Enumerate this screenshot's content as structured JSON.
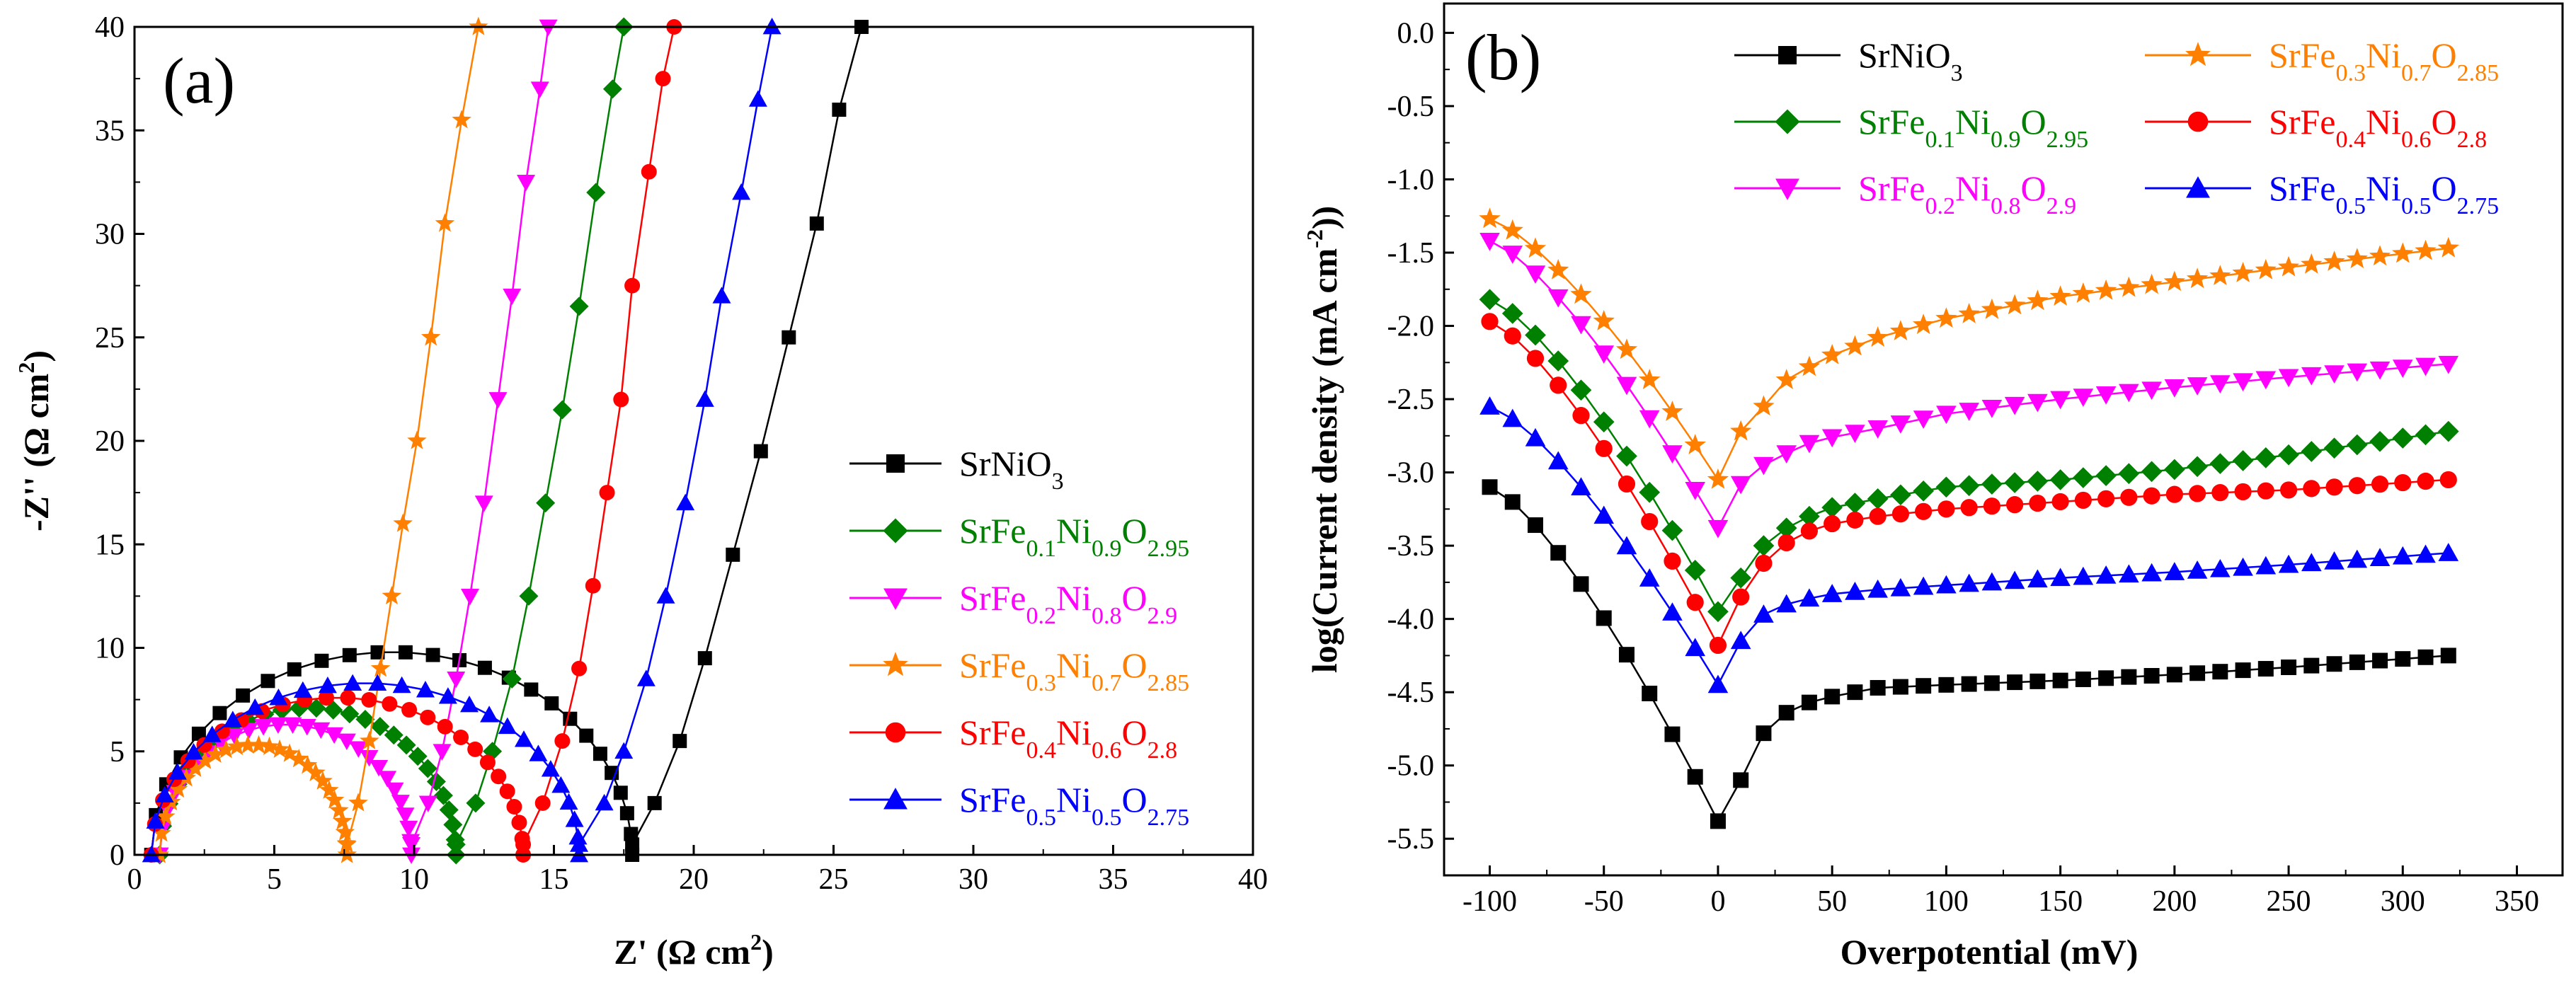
{
  "chart_data": [
    {
      "type": "scatter",
      "panel_label": "(a)",
      "xlabel": "Z' (Ω cm²)",
      "ylabel": "-Z'' (Ω cm²)",
      "xlim": [
        0,
        40
      ],
      "ylim": [
        0,
        40
      ],
      "xticks": [
        0,
        5,
        10,
        15,
        20,
        25,
        30,
        35,
        40
      ],
      "yticks": [
        0,
        5,
        10,
        15,
        20,
        25,
        30,
        35,
        40
      ],
      "legend_position": "center-right",
      "series": [
        {
          "name": "SrNiO3",
          "color": "#000000",
          "marker": "square",
          "arc": [
            0.6,
            17.8,
            9.8
          ],
          "tail": [
            [
              17.8,
              0.5
            ],
            [
              18.6,
              2.5
            ],
            [
              19.5,
              5.5
            ],
            [
              20.4,
              9.5
            ],
            [
              21.4,
              14.5
            ],
            [
              22.4,
              19.5
            ],
            [
              23.4,
              25
            ],
            [
              24.4,
              30.5
            ],
            [
              25.2,
              36
            ],
            [
              26.0,
              40
            ]
          ]
        },
        {
          "name": "SrFe0.1Ni0.9O2.95",
          "color": "#008000",
          "marker": "diamond",
          "arc": [
            0.9,
            11.5,
            7.1
          ],
          "tail": [
            [
              11.5,
              0.5
            ],
            [
              12.2,
              2.5
            ],
            [
              12.8,
              5
            ],
            [
              13.5,
              8.5
            ],
            [
              14.1,
              12.5
            ],
            [
              14.7,
              17
            ],
            [
              15.3,
              21.5
            ],
            [
              15.9,
              26.5
            ],
            [
              16.5,
              32
            ],
            [
              17.1,
              37
            ],
            [
              17.5,
              40
            ]
          ]
        },
        {
          "name": "SrFe0.2Ni0.8O2.9",
          "color": "#ff00ff",
          "marker": "triangle-down",
          "arc": [
            0.9,
            9.9,
            6.3
          ],
          "tail": [
            [
              9.9,
              0.5
            ],
            [
              10.5,
              2.5
            ],
            [
              11.0,
              5
            ],
            [
              11.5,
              8.5
            ],
            [
              12.0,
              12.5
            ],
            [
              12.5,
              17
            ],
            [
              13.0,
              22
            ],
            [
              13.5,
              27
            ],
            [
              14.0,
              32.5
            ],
            [
              14.5,
              37
            ],
            [
              14.8,
              40
            ]
          ]
        },
        {
          "name": "SrFe0.3Ni0.7O2.85",
          "color": "#ff8000",
          "marker": "star",
          "arc": [
            0.9,
            7.6,
            5.3
          ],
          "tail": [
            [
              7.6,
              0.5
            ],
            [
              8.0,
              2.5
            ],
            [
              8.4,
              5.5
            ],
            [
              8.8,
              9
            ],
            [
              9.2,
              12.5
            ],
            [
              9.6,
              16
            ],
            [
              10.1,
              20
            ],
            [
              10.6,
              25
            ],
            [
              11.1,
              30.5
            ],
            [
              11.7,
              35.5
            ],
            [
              12.3,
              40
            ]
          ]
        },
        {
          "name": "SrFe0.4Ni0.6O2.8",
          "color": "#ff0000",
          "marker": "circle",
          "arc": [
            0.6,
            13.9,
            7.6
          ],
          "tail": [
            [
              13.9,
              0.5
            ],
            [
              14.6,
              2.5
            ],
            [
              15.3,
              5.5
            ],
            [
              15.9,
              9
            ],
            [
              16.4,
              13
            ],
            [
              16.9,
              17.5
            ],
            [
              17.4,
              22
            ],
            [
              17.8,
              27.5
            ],
            [
              18.4,
              33
            ],
            [
              18.9,
              37.5
            ],
            [
              19.3,
              40
            ]
          ]
        },
        {
          "name": "SrFe0.5Ni0.5O2.75",
          "color": "#0000ff",
          "marker": "triangle-up",
          "arc": [
            0.6,
            15.9,
            8.3
          ],
          "tail": [
            [
              15.9,
              0.5
            ],
            [
              16.8,
              2.5
            ],
            [
              17.5,
              5
            ],
            [
              18.3,
              8.5
            ],
            [
              19.0,
              12.5
            ],
            [
              19.7,
              17
            ],
            [
              20.4,
              22
            ],
            [
              21.0,
              27
            ],
            [
              21.7,
              32
            ],
            [
              22.3,
              36.5
            ],
            [
              22.8,
              40
            ]
          ]
        }
      ]
    },
    {
      "type": "line",
      "panel_label": "(b)",
      "xlabel": "Overpotential (mV)",
      "ylabel": "log(Current density (mA cm⁻²))",
      "xlim": [
        -120,
        370
      ],
      "ylim": [
        -5.75,
        0.2
      ],
      "xticks": [
        -100,
        -50,
        0,
        50,
        100,
        150,
        200,
        250,
        300,
        350
      ],
      "yticks": [
        -5.5,
        -5.0,
        -4.5,
        -4.0,
        -3.5,
        -3.0,
        -2.5,
        -2.0,
        -1.5,
        -1.0,
        -0.5,
        0.0
      ],
      "legend_position": "top",
      "series": [
        {
          "name": "SrNiO3",
          "color": "#000000",
          "marker": "square",
          "left": [
            -100,
            -3.1
          ],
          "v": [
            0,
            -5.38
          ],
          "right": [
            [
              10,
              -5.1
            ],
            [
              20,
              -4.78
            ],
            [
              30,
              -4.64
            ],
            [
              40,
              -4.57
            ],
            [
              50,
              -4.53
            ],
            [
              70,
              -4.47
            ],
            [
              100,
              -4.45
            ],
            [
              150,
              -4.42
            ],
            [
              200,
              -4.38
            ],
            [
              250,
              -4.33
            ],
            [
              320,
              -4.25
            ]
          ]
        },
        {
          "name": "SrFe0.1Ni0.9O2.95",
          "color": "#008000",
          "marker": "diamond",
          "left": [
            -100,
            -1.82
          ],
          "v": [
            0,
            -3.95
          ],
          "right": [
            [
              10,
              -3.72
            ],
            [
              20,
              -3.5
            ],
            [
              30,
              -3.38
            ],
            [
              40,
              -3.3
            ],
            [
              50,
              -3.24
            ],
            [
              70,
              -3.18
            ],
            [
              100,
              -3.1
            ],
            [
              150,
              -3.05
            ],
            [
              200,
              -2.98
            ],
            [
              250,
              -2.88
            ],
            [
              320,
              -2.72
            ]
          ]
        },
        {
          "name": "SrFe0.2Ni0.8O2.9",
          "color": "#ff00ff",
          "marker": "triangle-down",
          "left": [
            -100,
            -1.42
          ],
          "v": [
            0,
            -3.38
          ],
          "right": [
            [
              10,
              -3.08
            ],
            [
              20,
              -2.95
            ],
            [
              30,
              -2.87
            ],
            [
              40,
              -2.8
            ],
            [
              50,
              -2.76
            ],
            [
              70,
              -2.7
            ],
            [
              100,
              -2.6
            ],
            [
              150,
              -2.5
            ],
            [
              200,
              -2.42
            ],
            [
              250,
              -2.35
            ],
            [
              320,
              -2.26
            ]
          ]
        },
        {
          "name": "SrFe0.3Ni0.7O2.85",
          "color": "#ff8000",
          "marker": "star",
          "left": [
            -100,
            -1.27
          ],
          "v": [
            0,
            -3.05
          ],
          "right": [
            [
              10,
              -2.72
            ],
            [
              20,
              -2.55
            ],
            [
              30,
              -2.37
            ],
            [
              40,
              -2.28
            ],
            [
              50,
              -2.2
            ],
            [
              70,
              -2.08
            ],
            [
              100,
              -1.95
            ],
            [
              150,
              -1.8
            ],
            [
              200,
              -1.7
            ],
            [
              250,
              -1.6
            ],
            [
              320,
              -1.47
            ]
          ]
        },
        {
          "name": "SrFe0.4Ni0.6O2.8",
          "color": "#ff0000",
          "marker": "circle",
          "left": [
            -100,
            -1.97
          ],
          "v": [
            0,
            -4.18
          ],
          "right": [
            [
              10,
              -3.85
            ],
            [
              20,
              -3.62
            ],
            [
              30,
              -3.48
            ],
            [
              40,
              -3.4
            ],
            [
              50,
              -3.35
            ],
            [
              70,
              -3.3
            ],
            [
              100,
              -3.25
            ],
            [
              150,
              -3.2
            ],
            [
              200,
              -3.15
            ],
            [
              250,
              -3.12
            ],
            [
              320,
              -3.05
            ]
          ]
        },
        {
          "name": "SrFe0.5Ni0.5O2.75",
          "color": "#0000ff",
          "marker": "triangle-up",
          "left": [
            -100,
            -2.55
          ],
          "v": [
            0,
            -4.45
          ],
          "right": [
            [
              10,
              -4.15
            ],
            [
              20,
              -3.97
            ],
            [
              30,
              -3.9
            ],
            [
              40,
              -3.86
            ],
            [
              50,
              -3.83
            ],
            [
              70,
              -3.8
            ],
            [
              100,
              -3.77
            ],
            [
              150,
              -3.72
            ],
            [
              200,
              -3.68
            ],
            [
              250,
              -3.63
            ],
            [
              320,
              -3.55
            ]
          ]
        }
      ]
    }
  ]
}
